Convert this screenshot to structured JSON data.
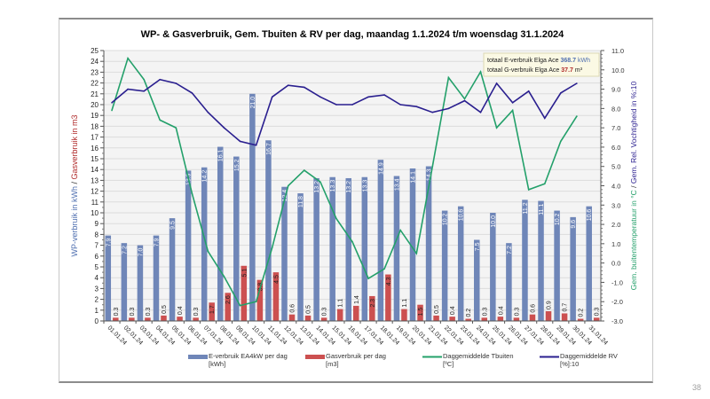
{
  "page_number": "38",
  "chart_data": {
    "type": "bar",
    "title": "WP- & Gasverbruik,  Gem. Tbuiten & RV per dag, maandag  1.1.2024  t/m woensdag  31.1.2024",
    "ylabel_left_part1": "WP-verbruik  in kWh",
    "ylabel_left_sep": "  /  ",
    "ylabel_left_part2": "Gasverbruik  in m3",
    "ylabel_right_part1": "Gem. buitentemperatuur  in °C",
    "ylabel_right_sep": " / ",
    "ylabel_right_part2": "Gem. Rel. Vochtigheid in %:10",
    "ylim_left": [
      0,
      25
    ],
    "ylim_right": [
      -3.0,
      11.0
    ],
    "left_ticks": [
      0,
      1,
      2,
      3,
      4,
      5,
      6,
      7,
      8,
      9,
      10,
      11,
      12,
      13,
      14,
      15,
      16,
      17,
      18,
      19,
      20,
      21,
      22,
      23,
      24,
      25
    ],
    "right_ticks": [
      "-3.0",
      "-2.0",
      "-1.0",
      "0.0",
      "1.0",
      "2.0",
      "3.0",
      "4.0",
      "5.0",
      "6.0",
      "7.0",
      "8.0",
      "9.0",
      "10.0",
      "11.0"
    ],
    "grid": true,
    "categories": [
      "01.01.24",
      "02.01.24",
      "03.01.24",
      "04.01.24",
      "05.01.24",
      "06.01.24",
      "07.01.24",
      "08.01.24",
      "09.01.24",
      "10.01.24",
      "11.01.24",
      "12.01.24",
      "13.01.24",
      "14.01.24",
      "15.01.24",
      "16.01.24",
      "17.01.24",
      "18.01.24",
      "19.01.24",
      "20.01.24",
      "21.01.24",
      "22.01.24",
      "23.01.24",
      "24.01.24",
      "25.01.24",
      "26.01.24",
      "27.01.24",
      "28.01.24",
      "29.01.24",
      "30.01.24",
      "31.01.24"
    ],
    "series": [
      {
        "name": "E-verbruik EA4kW per dag",
        "unit": "[kWh]",
        "type": "bar",
        "axis": "left",
        "color": "#6f86b8",
        "values": [
          7.9,
          7.2,
          7.0,
          7.9,
          9.5,
          13.9,
          14.2,
          16.1,
          15.2,
          21.0,
          16.7,
          12.4,
          11.8,
          13.2,
          13.3,
          13.2,
          13.3,
          14.9,
          13.4,
          14.1,
          14.3,
          10.2,
          10.6,
          7.5,
          10.0,
          7.2,
          11.2,
          11.1,
          10.2,
          9.6,
          10.6
        ]
      },
      {
        "name": "Gasverbruik per dag",
        "unit": "[m3]",
        "type": "bar",
        "axis": "left",
        "color": "#cc5050",
        "values": [
          0.3,
          0.3,
          0.3,
          0.5,
          0.4,
          0.3,
          1.7,
          2.6,
          5.1,
          3.8,
          4.5,
          0.6,
          0.5,
          0.3,
          1.1,
          1.4,
          2.3,
          4.3,
          1.1,
          1.5,
          0.5,
          0.4,
          0.2,
          0.3,
          0.4,
          0.3,
          0.6,
          0.9,
          0.7,
          0.2,
          0.3
        ]
      },
      {
        "name": "Daggemiddelde   Tbuiten",
        "unit": "[ºC]",
        "type": "line",
        "axis": "right",
        "color": "#23a06a",
        "values": [
          7.9,
          10.6,
          9.5,
          7.4,
          7.0,
          3.6,
          0.6,
          -0.7,
          -2.2,
          -2.0,
          0.8,
          4.0,
          4.8,
          4.2,
          2.3,
          1.1,
          -0.8,
          -0.3,
          1.7,
          0.5,
          5.0,
          9.6,
          8.5,
          9.9,
          7.0,
          7.9,
          3.8,
          4.1,
          6.3,
          7.6,
          null
        ]
      },
      {
        "name": "Daggemiddelde RV",
        "unit": "[%]:10",
        "type": "line",
        "axis": "right",
        "color": "#2a1f8f",
        "values": [
          8.3,
          9.0,
          8.9,
          9.5,
          9.3,
          8.8,
          7.8,
          7.0,
          6.3,
          6.1,
          8.6,
          9.2,
          9.1,
          8.6,
          8.2,
          8.2,
          8.6,
          8.7,
          8.2,
          8.1,
          7.8,
          8.0,
          8.4,
          7.8,
          9.3,
          8.3,
          8.9,
          7.5,
          8.8,
          9.3,
          null
        ]
      }
    ],
    "annotation": {
      "e_label": "totaal E-verbruik Elga Ace",
      "e_value": "368.7",
      "e_unit": "kWh",
      "g_label": "totaal G-verbruik Elga Ace",
      "g_value": "37.7",
      "g_unit": "m³",
      "e_color": "#4f6fb0",
      "g_color": "#b02a2a"
    },
    "legend_position": "bottom"
  }
}
